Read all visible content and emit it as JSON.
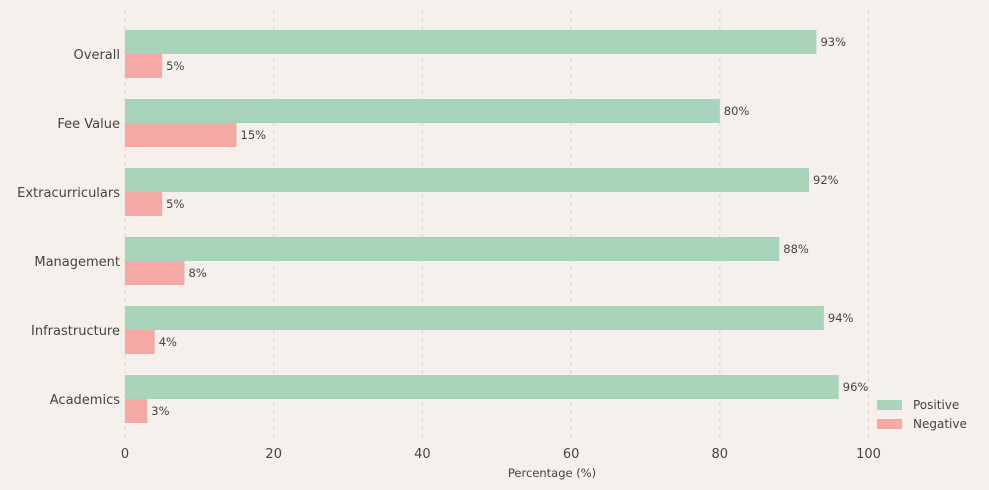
{
  "chart_data": {
    "type": "bar",
    "orientation": "horizontal",
    "categories": [
      "Overall",
      "Fee Value",
      "Extracurriculars",
      "Management",
      "Infrastructure",
      "Academics"
    ],
    "series": [
      {
        "name": "Positive",
        "color": "#a8d5b9",
        "values": [
          93,
          80,
          92,
          88,
          94,
          96
        ],
        "labels": [
          "93%",
          "80%",
          "92%",
          "88%",
          "94%",
          "96%"
        ]
      },
      {
        "name": "Negative",
        "color": "#f5a9a4",
        "values": [
          5,
          15,
          5,
          8,
          4,
          3
        ],
        "labels": [
          "5%",
          "15%",
          "5%",
          "8%",
          "4%",
          "3%"
        ]
      }
    ],
    "xlabel": "Percentage (%)",
    "ylabel": "",
    "xlim": [
      0,
      115
    ],
    "xticks": [
      "0",
      "20",
      "40",
      "60",
      "80",
      "100"
    ],
    "grid": "vertical dashed",
    "legend_position": "lower-right",
    "background": "#f5f0eb"
  }
}
